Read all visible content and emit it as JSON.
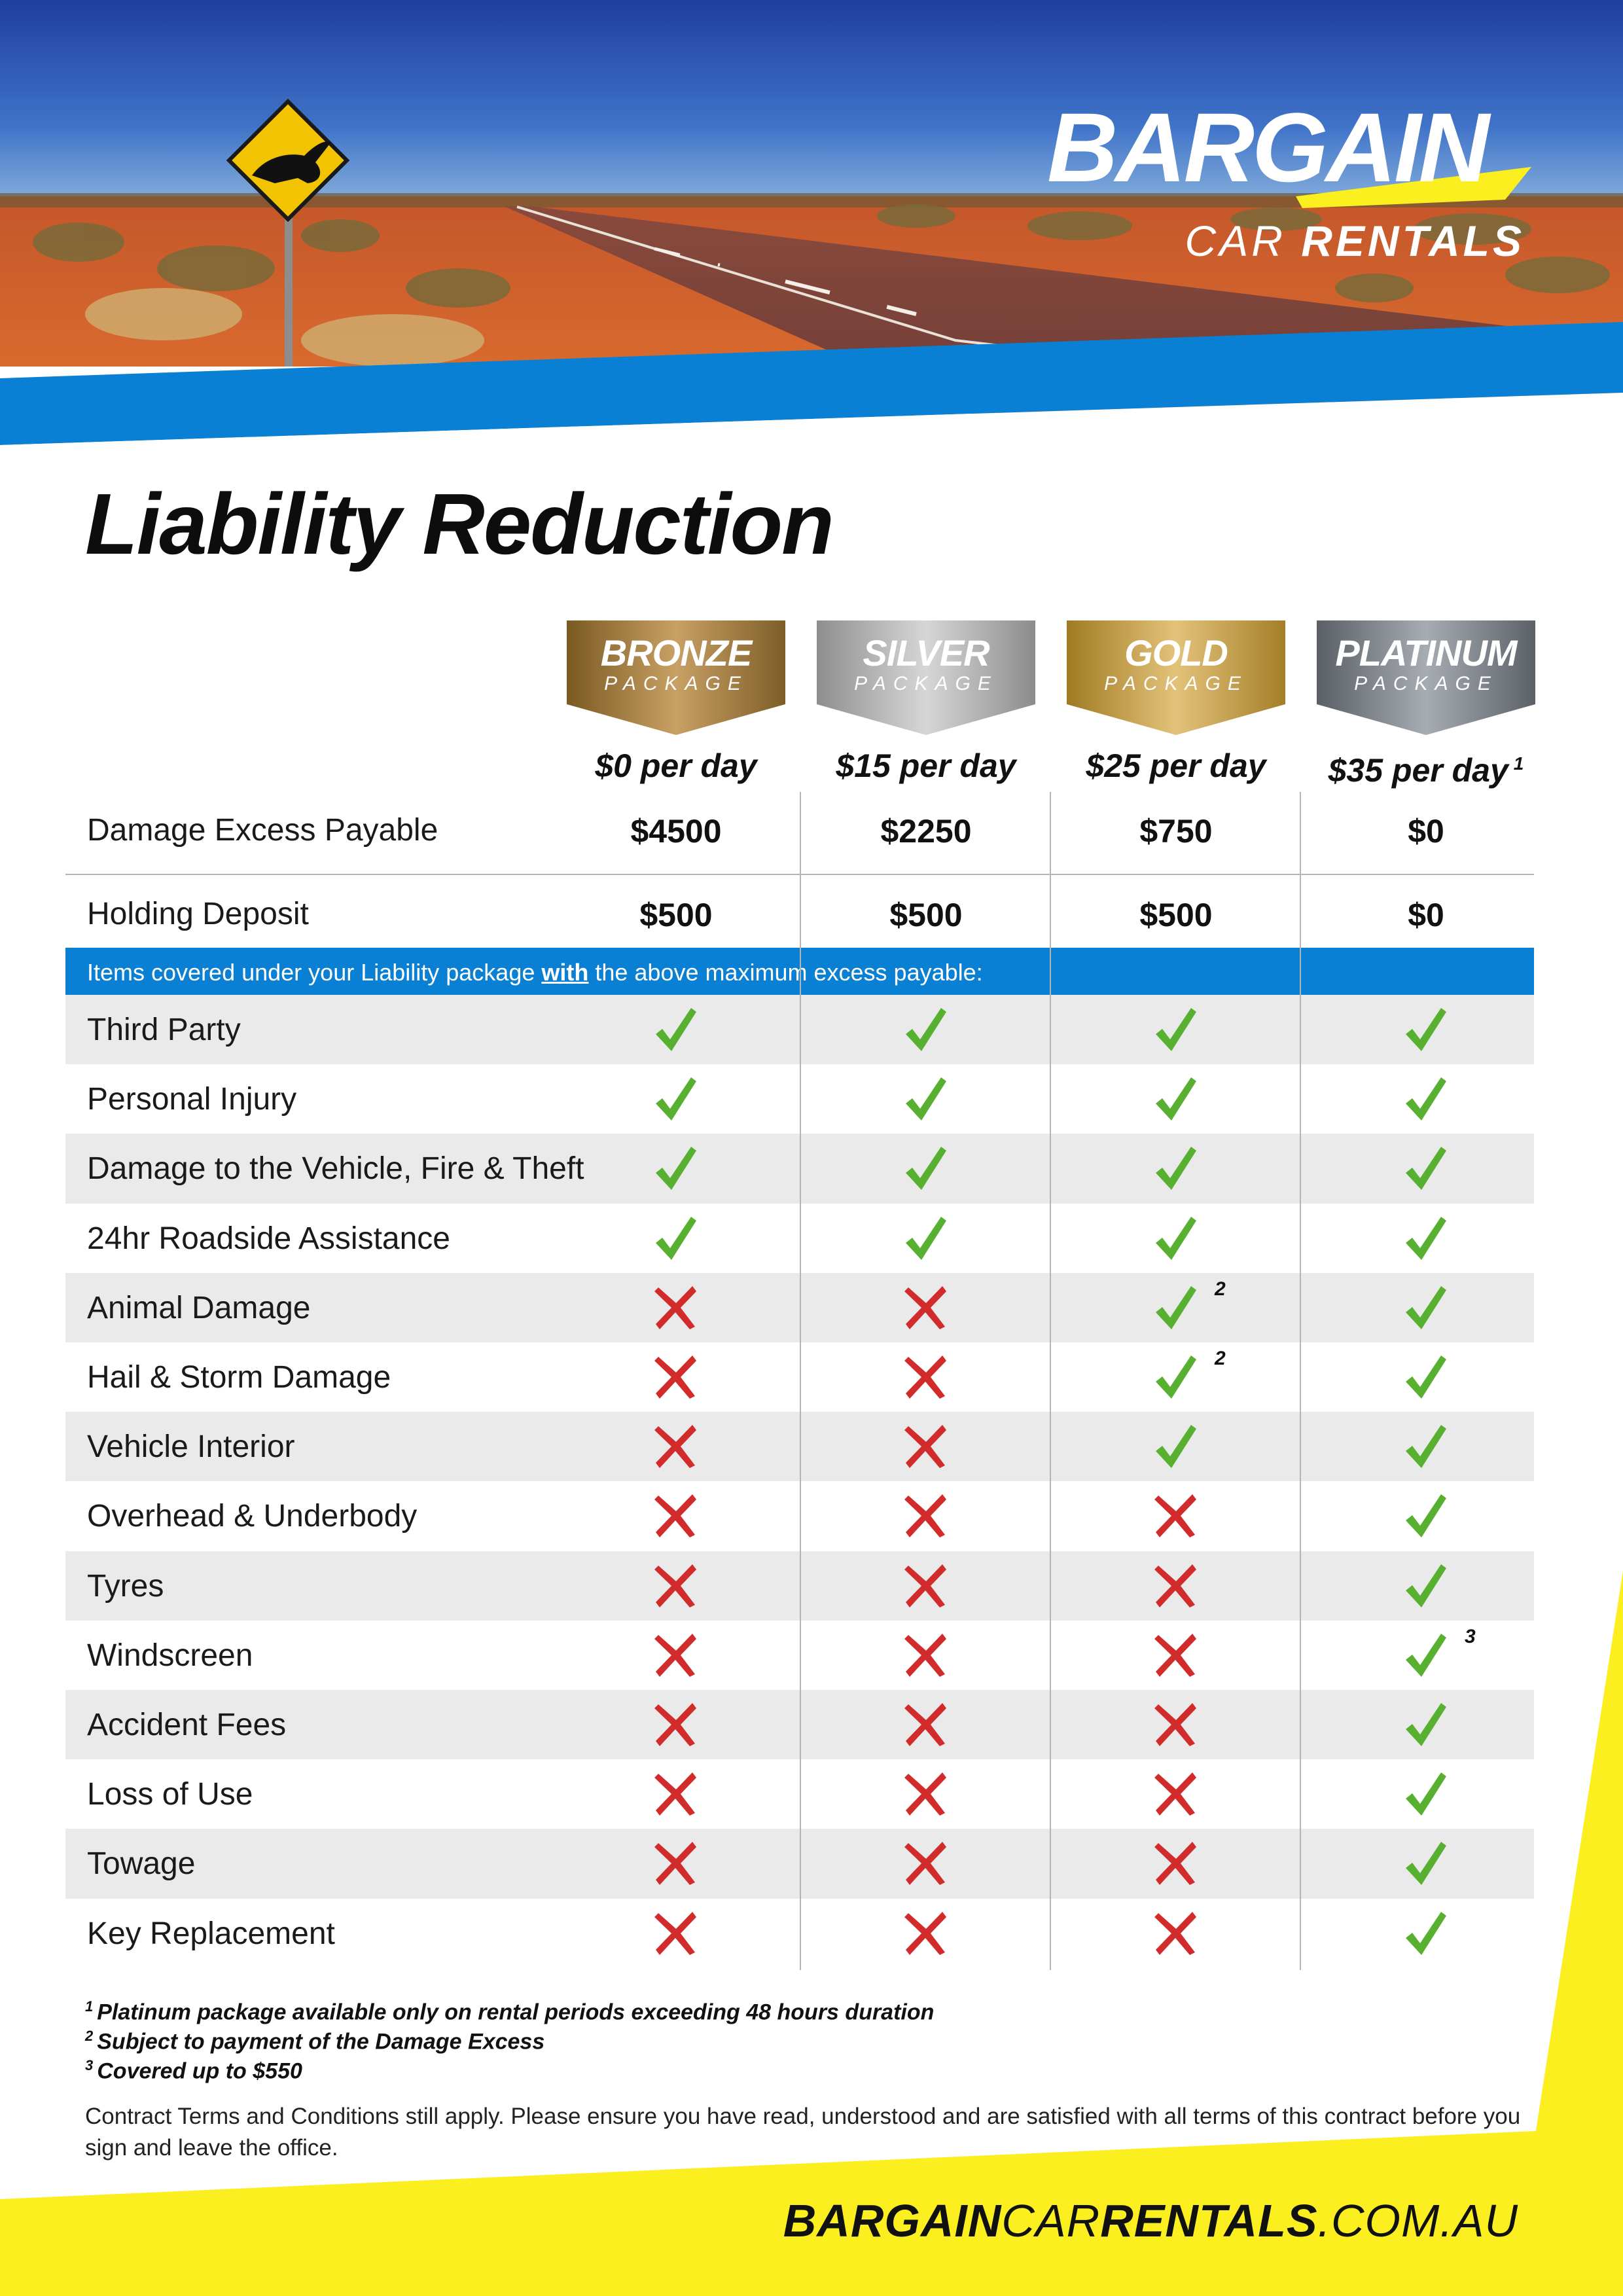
{
  "brand": {
    "logo_main": "BARGAIN",
    "logo_sub_light": "CAR ",
    "logo_sub_bold": "RENTALS",
    "colors": {
      "blue": "#0a80d4",
      "yellow": "#fbef1f",
      "check": "#58b030",
      "cross": "#d22b2b"
    }
  },
  "title": "Liability Reduction",
  "packages": [
    {
      "name": "BRONZE",
      "sub": "PACKAGE",
      "price": "$0 per day",
      "note": "",
      "damage_excess": "$4500",
      "holding_deposit": "$500"
    },
    {
      "name": "SILVER",
      "sub": "PACKAGE",
      "price": "$15 per day",
      "note": "",
      "damage_excess": "$2250",
      "holding_deposit": "$500"
    },
    {
      "name": "GOLD",
      "sub": "PACKAGE",
      "price": "$25 per day",
      "note": "",
      "damage_excess": "$750",
      "holding_deposit": "$500"
    },
    {
      "name": "PLATINUM",
      "sub": "PACKAGE",
      "price": "$35 per day",
      "note": "1",
      "damage_excess": "$0",
      "holding_deposit": "$0"
    }
  ],
  "rows": {
    "damage_excess_label": "Damage Excess Payable",
    "holding_deposit_label": "Holding Deposit"
  },
  "bluebar": {
    "before": "Items covered under your Liability package ",
    "emph": "with",
    "after": " the above maximum excess payable:"
  },
  "coverage": [
    {
      "label": "Third Party",
      "values": [
        "check",
        "check",
        "check",
        "check"
      ],
      "notes": [
        "",
        "",
        "",
        ""
      ]
    },
    {
      "label": "Personal Injury",
      "values": [
        "check",
        "check",
        "check",
        "check"
      ],
      "notes": [
        "",
        "",
        "",
        ""
      ]
    },
    {
      "label": "Damage to the Vehicle, Fire & Theft",
      "values": [
        "check",
        "check",
        "check",
        "check"
      ],
      "notes": [
        "",
        "",
        "",
        ""
      ]
    },
    {
      "label": "24hr Roadside Assistance",
      "values": [
        "check",
        "check",
        "check",
        "check"
      ],
      "notes": [
        "",
        "",
        "",
        ""
      ]
    },
    {
      "label": "Animal Damage",
      "values": [
        "cross",
        "cross",
        "check",
        "check"
      ],
      "notes": [
        "",
        "",
        "2",
        ""
      ]
    },
    {
      "label": "Hail & Storm Damage",
      "values": [
        "cross",
        "cross",
        "check",
        "check"
      ],
      "notes": [
        "",
        "",
        "2",
        ""
      ]
    },
    {
      "label": "Vehicle Interior",
      "values": [
        "cross",
        "cross",
        "check",
        "check"
      ],
      "notes": [
        "",
        "",
        "",
        ""
      ]
    },
    {
      "label": "Overhead & Underbody",
      "values": [
        "cross",
        "cross",
        "cross",
        "check"
      ],
      "notes": [
        "",
        "",
        "",
        ""
      ]
    },
    {
      "label": "Tyres",
      "values": [
        "cross",
        "cross",
        "cross",
        "check"
      ],
      "notes": [
        "",
        "",
        "",
        ""
      ]
    },
    {
      "label": "Windscreen",
      "values": [
        "cross",
        "cross",
        "cross",
        "check"
      ],
      "notes": [
        "",
        "",
        "",
        "3"
      ]
    },
    {
      "label": "Accident Fees",
      "values": [
        "cross",
        "cross",
        "cross",
        "check"
      ],
      "notes": [
        "",
        "",
        "",
        ""
      ]
    },
    {
      "label": "Loss of Use",
      "values": [
        "cross",
        "cross",
        "cross",
        "check"
      ],
      "notes": [
        "",
        "",
        "",
        ""
      ]
    },
    {
      "label": "Towage",
      "values": [
        "cross",
        "cross",
        "cross",
        "check"
      ],
      "notes": [
        "",
        "",
        "",
        ""
      ]
    },
    {
      "label": "Key Replacement",
      "values": [
        "cross",
        "cross",
        "cross",
        "check"
      ],
      "notes": [
        "",
        "",
        "",
        ""
      ]
    }
  ],
  "footnotes": [
    {
      "num": "1",
      "text": "Platinum package available only on rental periods exceeding 48 hours duration"
    },
    {
      "num": "2",
      "text": "Subject to payment of the Damage Excess"
    },
    {
      "num": "3",
      "text": "Covered up to $550"
    }
  ],
  "terms": "Contract Terms and Conditions still apply. Please ensure you have read, understood and are satisfied with all terms of this contract before you sign and leave the office.",
  "website": {
    "part1": "BARGAIN",
    "part2": "CAR",
    "part3": "RENTALS",
    "part4": ".COM.AU"
  }
}
